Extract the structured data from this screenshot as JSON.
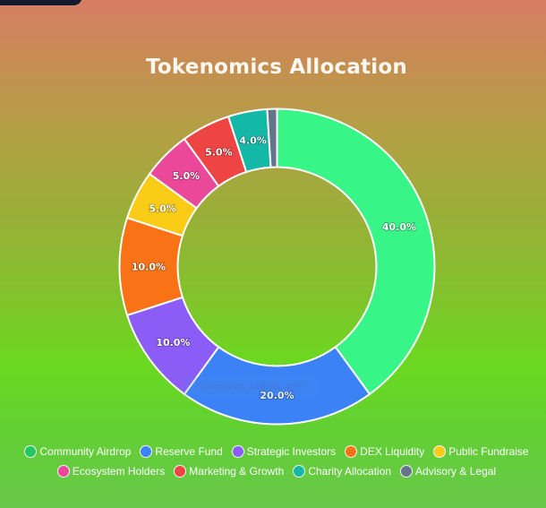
{
  "title": "Tokenomics Allocation",
  "tooltip": "Community Airdrop: 40%",
  "chart_data": {
    "type": "doughnut",
    "title": "Tokenomics Allocation",
    "categories": [
      "Community Airdrop",
      "Reserve Fund",
      "Strategic Investors",
      "DEX Liquidity",
      "Public Fundraise",
      "Ecosystem Holders",
      "Marketing & Growth",
      "Charity Allocation",
      "Advisory & Legal"
    ],
    "values": [
      40,
      20,
      10,
      10,
      5,
      5,
      5,
      4,
      1
    ],
    "labels": [
      "40.0%",
      "20.0%",
      "10.0%",
      "10.0%",
      "5.0%",
      "5.0%",
      "5.0%",
      "4.0%",
      ""
    ],
    "slice_colors": [
      "#38f587",
      "#3b82f6",
      "#8b5cf6",
      "#f97316",
      "#facc15",
      "#ec4899",
      "#ef4444",
      "#14b8a6",
      "#64748b"
    ],
    "legend_colors": [
      "#22c55e",
      "#3b82f6",
      "#8b5cf6",
      "#f97316",
      "#facc15",
      "#ec4899",
      "#ef4444",
      "#14b8a6",
      "#64748b"
    ],
    "legend_position": "bottom",
    "unit": "%"
  },
  "legend": {
    "row1": [
      {
        "label": "Community Airdrop",
        "color": "#22c55e"
      },
      {
        "label": "Reserve Fund",
        "color": "#3b82f6"
      },
      {
        "label": "Strategic Investors",
        "color": "#8b5cf6"
      },
      {
        "label": "DEX Liquidity",
        "color": "#f97316"
      },
      {
        "label": "Public Fundraise",
        "color": "#facc15"
      }
    ],
    "row2": [
      {
        "label": "Ecosystem Holders",
        "color": "#ec4899"
      },
      {
        "label": "Marketing & Growth",
        "color": "#ef4444"
      },
      {
        "label": "Charity Allocation",
        "color": "#14b8a6"
      },
      {
        "label": "Advisory & Legal",
        "color": "#64748b"
      }
    ]
  }
}
